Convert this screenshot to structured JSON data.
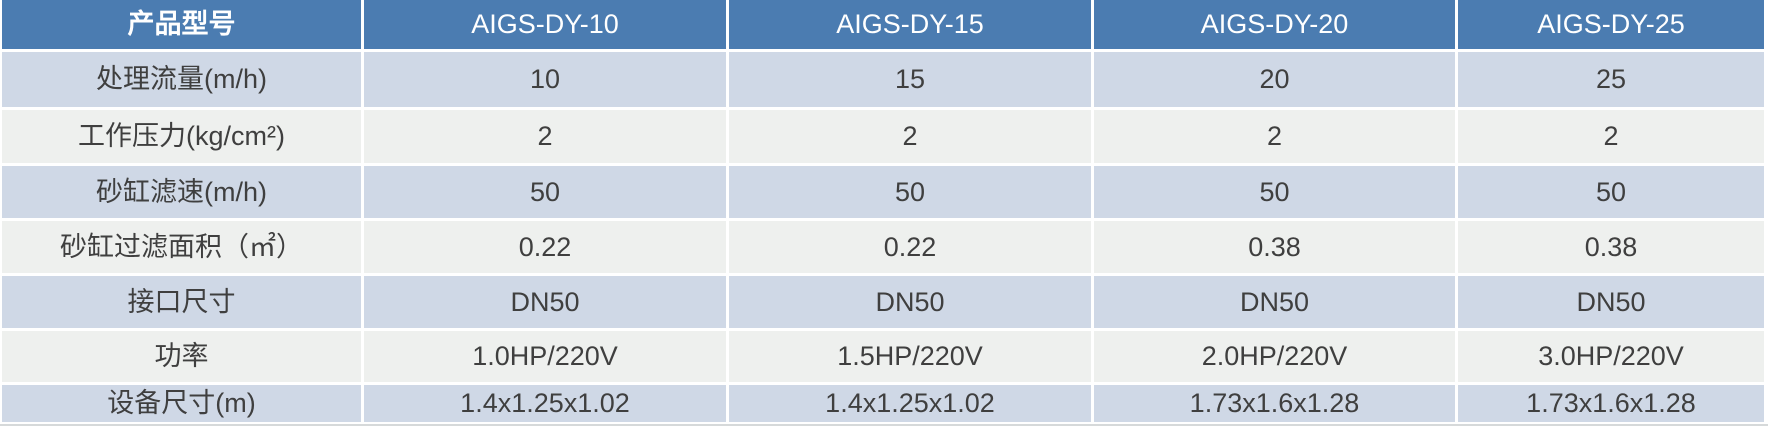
{
  "table": {
    "header": [
      "产品型号",
      "AIGS-DY-10",
      "AIGS-DY-15",
      "AIGS-DY-20",
      "AIGS-DY-25"
    ],
    "rows": [
      {
        "label": "处理流量(m/h)",
        "values": [
          "10",
          "15",
          "20",
          "25"
        ]
      },
      {
        "label": "工作压力(kg/cm²)",
        "values": [
          "2",
          "2",
          "2",
          "2"
        ]
      },
      {
        "label": "砂缸滤速(m/h)",
        "values": [
          "50",
          "50",
          "50",
          "50"
        ]
      },
      {
        "label": "砂缸过滤面积（㎡）",
        "values": [
          "0.22",
          "0.22",
          "0.38",
          "0.38"
        ]
      },
      {
        "label": "接口尺寸",
        "values": [
          "DN50",
          "DN50",
          "DN50",
          "DN50"
        ]
      },
      {
        "label": "功率",
        "values": [
          "1.0HP/220V",
          "1.5HP/220V",
          "2.0HP/220V",
          "3.0HP/220V"
        ]
      },
      {
        "label": "设备尺寸(m)",
        "values": [
          "1.4x1.25x1.02",
          "1.4x1.25x1.02",
          "1.73x1.6x1.28",
          "1.73x1.6x1.28"
        ]
      }
    ]
  },
  "colors": {
    "header_bg": "#4b7cb1",
    "header_text": "#ffffff",
    "row_light_blue": "#cfd8e6",
    "row_light_gray": "#eef0ee",
    "body_text": "#3f3f3f"
  },
  "chart_data": {
    "type": "table",
    "title": "产品型号规格表",
    "columns": [
      "产品型号",
      "AIGS-DY-10",
      "AIGS-DY-15",
      "AIGS-DY-20",
      "AIGS-DY-25"
    ],
    "rows": [
      [
        "处理流量(m/h)",
        "10",
        "15",
        "20",
        "25"
      ],
      [
        "工作压力(kg/cm²)",
        "2",
        "2",
        "2",
        "2"
      ],
      [
        "砂缸滤速(m/h)",
        "50",
        "50",
        "50",
        "50"
      ],
      [
        "砂缸过滤面积（㎡）",
        "0.22",
        "0.22",
        "0.38",
        "0.38"
      ],
      [
        "接口尺寸",
        "DN50",
        "DN50",
        "DN50",
        "DN50"
      ],
      [
        "功率",
        "1.0HP/220V",
        "1.5HP/220V",
        "2.0HP/220V",
        "3.0HP/220V"
      ],
      [
        "设备尺寸(m)",
        "1.4x1.25x1.02",
        "1.4x1.25x1.02",
        "1.73x1.6x1.28",
        "1.73x1.6x1.28"
      ]
    ]
  }
}
